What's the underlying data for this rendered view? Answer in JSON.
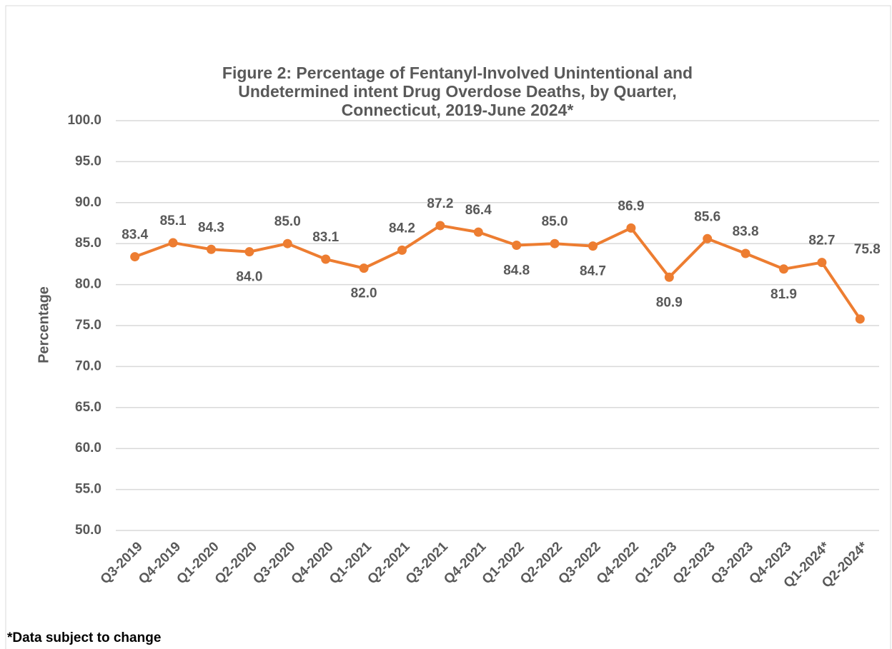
{
  "chart_data": {
    "type": "line",
    "title": [
      "Figure 2: Percentage of Fentanyl-Involved Unintentional and",
      "Undetermined intent Drug Overdose Deaths, by Quarter,",
      "Connecticut, 2019-June 2024*"
    ],
    "y_label": "Percentage",
    "footnote": "*Data subject to change",
    "categories": [
      "Q3-2019",
      "Q4-2019",
      "Q1-2020",
      "Q2-2020",
      "Q3-2020",
      "Q4-2020",
      "Q1-2021",
      "Q2-2021",
      "Q3-2021",
      "Q4-2021",
      "Q1-2022",
      "Q2-2022",
      "Q3-2022",
      "Q4-2022",
      "Q1-2023",
      "Q2-2023",
      "Q3-2023",
      "Q4-2023",
      "Q1-2024*",
      "Q2-2024*"
    ],
    "series": [
      {
        "name": "Percentage",
        "color": "#ed7d31",
        "values": [
          83.4,
          85.1,
          84.3,
          84.0,
          85.0,
          83.1,
          82.0,
          84.2,
          87.2,
          86.4,
          84.8,
          85.0,
          84.7,
          86.9,
          80.9,
          85.6,
          83.8,
          81.9,
          82.7,
          75.8
        ],
        "value_labels": [
          "83.4",
          "85.1",
          "84.3",
          "84.0",
          "85.0",
          "83.1",
          "82.0",
          "84.2",
          "87.2",
          "86.4",
          "84.8",
          "85.0",
          "84.7",
          "86.9",
          "80.9",
          "85.6",
          "83.8",
          "81.9",
          "82.7",
          "75.8"
        ]
      }
    ],
    "ylim": [
      50,
      100
    ],
    "yticks": [
      {
        "value": 50,
        "label": "50.0"
      },
      {
        "value": 55,
        "label": "55.0"
      },
      {
        "value": 60,
        "label": "60.0"
      },
      {
        "value": 65,
        "label": "65.0"
      },
      {
        "value": 70,
        "label": "70.0"
      },
      {
        "value": 75,
        "label": "75.0"
      },
      {
        "value": 80,
        "label": "80.0"
      },
      {
        "value": 85,
        "label": "85.0"
      },
      {
        "value": 90,
        "label": "90.0"
      },
      {
        "value": 95,
        "label": "95.0"
      },
      {
        "value": 100,
        "label": "100.0"
      }
    ],
    "grid": true
  }
}
